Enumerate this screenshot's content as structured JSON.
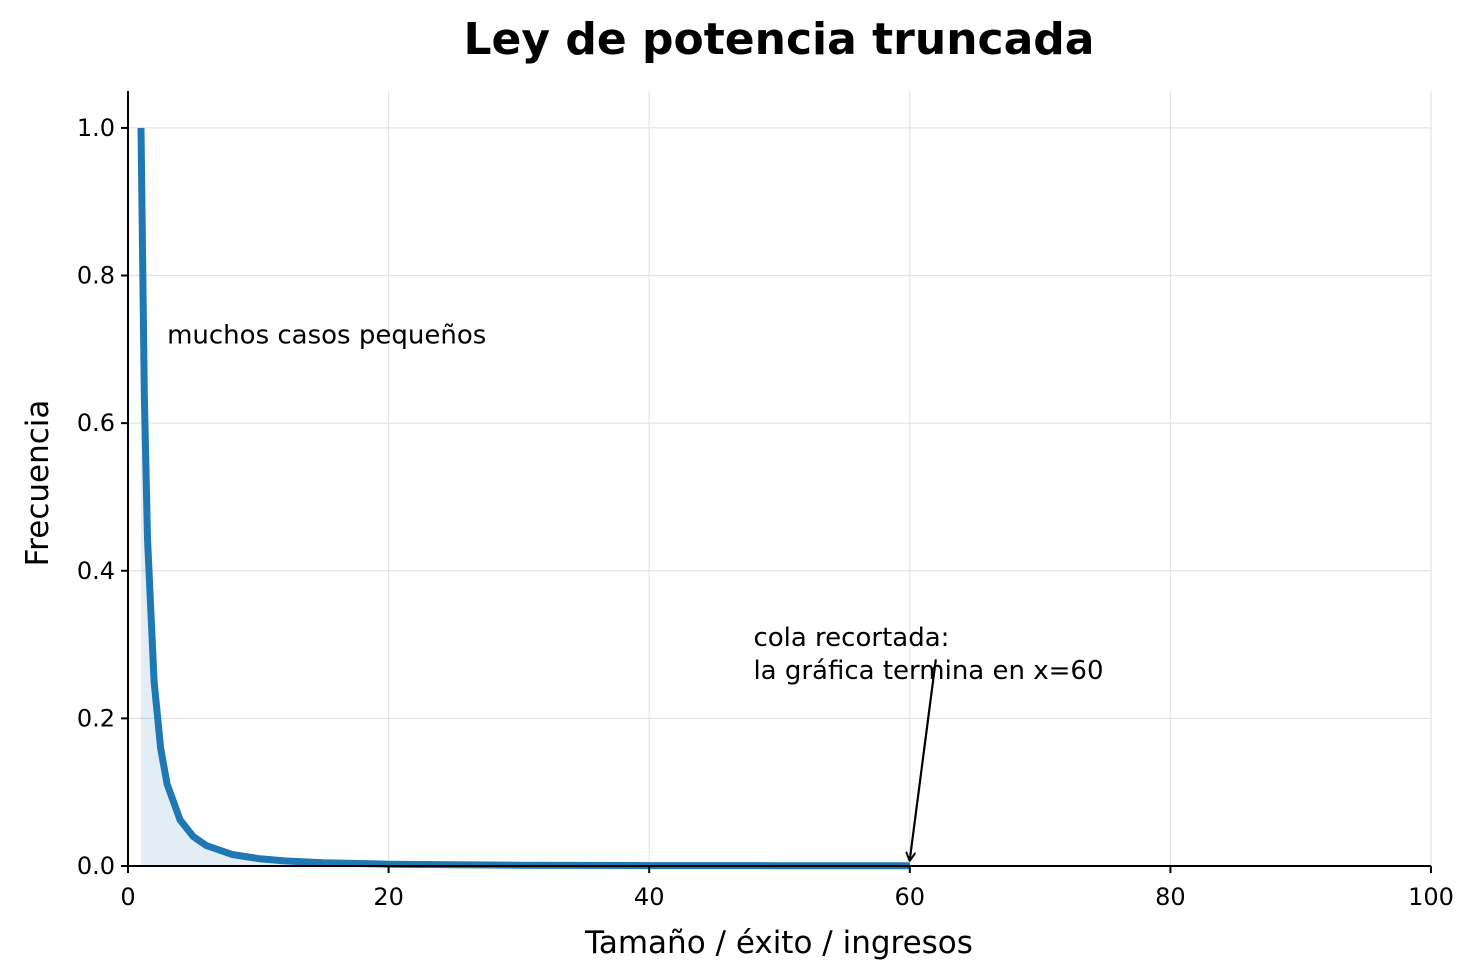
{
  "chart_data": {
    "type": "area",
    "title": "Ley de potencia truncada",
    "xlabel": "Tamaño / éxito / ingresos",
    "ylabel": "Frecuencia",
    "xlim": [
      0,
      100
    ],
    "ylim": [
      0,
      1.05
    ],
    "xticks": [
      0,
      20,
      40,
      60,
      80,
      100
    ],
    "xtick_labels": [
      "0",
      "20",
      "40",
      "60",
      "80",
      "100"
    ],
    "yticks": [
      0.0,
      0.2,
      0.4,
      0.6,
      0.8,
      1.0
    ],
    "ytick_labels": [
      "0.0",
      "0.2",
      "0.4",
      "0.6",
      "0.8",
      "1.0"
    ],
    "grid": true,
    "series": [
      {
        "x": [
          1,
          1.25,
          1.5,
          2,
          2.5,
          3,
          4,
          5,
          6,
          8,
          10,
          12,
          15,
          20,
          25,
          30,
          40,
          50,
          60
        ],
        "values": [
          1.0,
          0.64,
          0.444,
          0.25,
          0.16,
          0.111,
          0.0625,
          0.04,
          0.0278,
          0.0156,
          0.01,
          0.0069,
          0.0044,
          0.0025,
          0.0016,
          0.0011,
          0.0006,
          0.0004,
          0.0003
        ],
        "color": "#1f77b4",
        "fill_color": "#1f77b4",
        "fill_opacity": 0.13
      }
    ],
    "annotations": [
      {
        "lines": [
          "muchos casos pequeños"
        ],
        "x": 3,
        "y": 0.72
      },
      {
        "lines": [
          "cola recortada:",
          "la gráfica termina en x=60"
        ],
        "x": 48,
        "y": 0.31,
        "arrow_to": [
          60,
          0.003
        ],
        "arrow_from": [
          62,
          0.28
        ]
      }
    ]
  }
}
